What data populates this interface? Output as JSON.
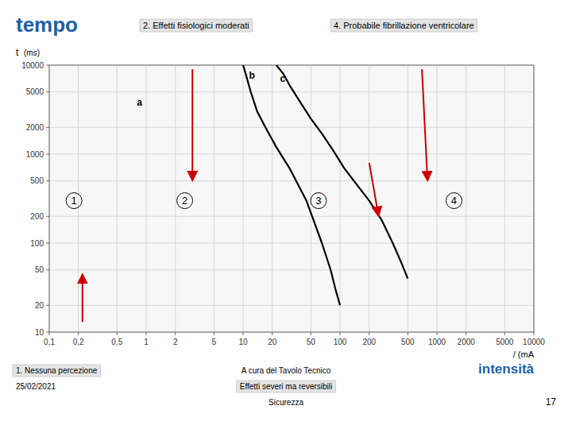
{
  "chart_data": {
    "type": "line",
    "title": "tempo",
    "xlabel": "/ (mA",
    "ylabel": "t",
    "ylabel_unit": "(ms)",
    "log": true,
    "grid": true,
    "xlim": [
      0.1,
      10000
    ],
    "ylim": [
      10,
      10000
    ],
    "xticks": [
      {
        "value": 0.1,
        "label": "0,1"
      },
      {
        "value": 0.2,
        "label": "0,2"
      },
      {
        "value": 0.5,
        "label": "0,5"
      },
      1,
      2,
      5,
      10,
      20,
      50,
      100,
      200,
      500,
      1000,
      2000,
      5000,
      10000
    ],
    "yticks": [
      10,
      20,
      50,
      100,
      200,
      500,
      1000,
      2000,
      5000,
      10000
    ],
    "series": [
      {
        "color": "#000000",
        "x": [
          10,
          10.3,
          11,
          12,
          14,
          17,
          22,
          30,
          45,
          65,
          80,
          90,
          100
        ],
        "values": [
          10000,
          9000,
          7000,
          5000,
          3000,
          2000,
          1200,
          700,
          300,
          100,
          50,
          30,
          20
        ]
      },
      {
        "color": "#000000",
        "x": [
          22,
          26,
          30,
          38,
          50,
          65,
          85,
          110,
          150,
          200,
          270,
          350,
          430,
          500
        ],
        "values": [
          10000,
          8000,
          6000,
          4000,
          2500,
          1700,
          1100,
          700,
          450,
          300,
          180,
          100,
          60,
          40
        ]
      }
    ],
    "curve_labels": [
      {
        "text": "a",
        "x": 0.8,
        "y": 3500
      },
      {
        "text": "b",
        "x": 11.5,
        "y": 7000
      },
      {
        "text": "c",
        "x": 24,
        "y": 6500
      }
    ],
    "zones": [
      {
        "text": "1",
        "x": 0.18,
        "y": 300
      },
      {
        "text": "2",
        "x": 2.5,
        "y": 300
      },
      {
        "text": "3",
        "x": 60,
        "y": 300
      },
      {
        "text": "4",
        "x": 1500,
        "y": 300
      }
    ],
    "arrows": [
      {
        "color": "#cc0000",
        "x": [
          0.22,
          0.22
        ],
        "y": [
          13,
          45
        ]
      },
      {
        "color": "#cc0000",
        "x": [
          3,
          3
        ],
        "y": [
          9000,
          500
        ]
      },
      {
        "color": "#cc0000",
        "x": [
          200,
          250
        ],
        "y": [
          800,
          200
        ]
      },
      {
        "color": "#cc0000",
        "x": [
          700,
          800
        ],
        "y": [
          9000,
          500
        ]
      }
    ],
    "notes": [
      "2. Effetti fisiologici moderati",
      "4. Probabile fibrillazione ventricolare",
      "intensità",
      "1. Nessuna percezione",
      "25/02/2021",
      "A cura del Tavolo Tecnico",
      "Effetti severi ma reversibili",
      "Sicurezza",
      "17"
    ]
  }
}
